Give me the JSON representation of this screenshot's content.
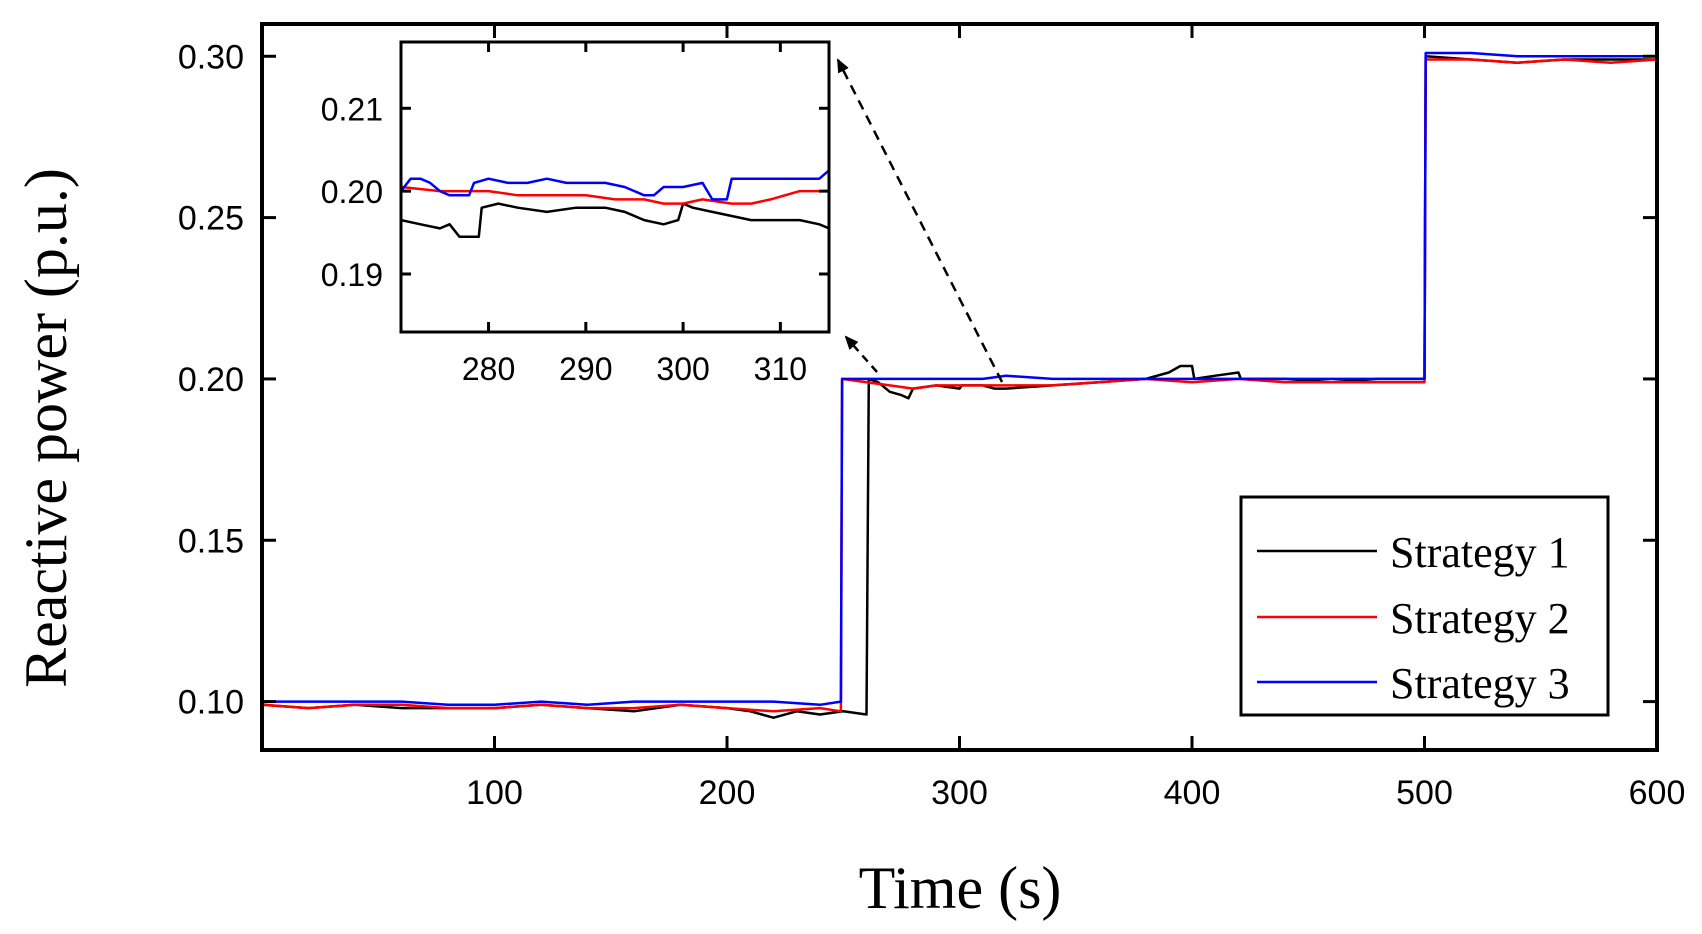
{
  "chart_data": [
    {
      "id": "main",
      "type": "line",
      "title": "",
      "xlabel": "Time (s)",
      "ylabel": "Reactive power (p.u.)",
      "xlim": [
        0,
        600
      ],
      "ylim": [
        0.085,
        0.31
      ],
      "xticks": [
        100,
        200,
        300,
        400,
        500,
        600
      ],
      "xtick_labels": [
        "100",
        "200",
        "300",
        "400",
        "500",
        "600"
      ],
      "yticks": [
        0.1,
        0.15,
        0.2,
        0.25,
        0.3
      ],
      "ytick_labels": [
        "0.10",
        "0.15",
        "0.20",
        "0.25",
        "0.30"
      ],
      "legend": {
        "position": "bottom-right",
        "entries": [
          "Strategy 1",
          "Strategy 2",
          "Strategy 3"
        ]
      },
      "series": [
        {
          "name": "Strategy 1",
          "color": "#000000",
          "points": [
            [
              0,
              0.099
            ],
            [
              20,
              0.098
            ],
            [
              40,
              0.099
            ],
            [
              60,
              0.098
            ],
            [
              80,
              0.098
            ],
            [
              100,
              0.098
            ],
            [
              120,
              0.099
            ],
            [
              140,
              0.098
            ],
            [
              160,
              0.097
            ],
            [
              180,
              0.099
            ],
            [
              200,
              0.098
            ],
            [
              210,
              0.097
            ],
            [
              220,
              0.095
            ],
            [
              230,
              0.097
            ],
            [
              240,
              0.096
            ],
            [
              250,
              0.097
            ],
            [
              260,
              0.096
            ],
            [
              261,
              0.2
            ],
            [
              265,
              0.199
            ],
            [
              270,
              0.196
            ],
            [
              275,
              0.195
            ],
            [
              278,
              0.194
            ],
            [
              280,
              0.197
            ],
            [
              290,
              0.198
            ],
            [
              300,
              0.197
            ],
            [
              301,
              0.198
            ],
            [
              310,
              0.198
            ],
            [
              315,
              0.197
            ],
            [
              320,
              0.197
            ],
            [
              340,
              0.198
            ],
            [
              360,
              0.199
            ],
            [
              380,
              0.2
            ],
            [
              390,
              0.202
            ],
            [
              395,
              0.204
            ],
            [
              400,
              0.204
            ],
            [
              401,
              0.2
            ],
            [
              410,
              0.201
            ],
            [
              420,
              0.202
            ],
            [
              421,
              0.2
            ],
            [
              440,
              0.2
            ],
            [
              460,
              0.199
            ],
            [
              480,
              0.2
            ],
            [
              500,
              0.2
            ],
            [
              500.5,
              0.3
            ],
            [
              520,
              0.299
            ],
            [
              540,
              0.298
            ],
            [
              560,
              0.299
            ],
            [
              580,
              0.299
            ],
            [
              600,
              0.299
            ]
          ]
        },
        {
          "name": "Strategy 2",
          "color": "#ff0000",
          "points": [
            [
              0,
              0.099
            ],
            [
              20,
              0.098
            ],
            [
              40,
              0.099
            ],
            [
              60,
              0.099
            ],
            [
              80,
              0.098
            ],
            [
              100,
              0.098
            ],
            [
              120,
              0.099
            ],
            [
              140,
              0.098
            ],
            [
              160,
              0.098
            ],
            [
              180,
              0.099
            ],
            [
              200,
              0.098
            ],
            [
              220,
              0.097
            ],
            [
              240,
              0.098
            ],
            [
              249,
              0.097
            ],
            [
              249.5,
              0.2
            ],
            [
              260,
              0.199
            ],
            [
              270,
              0.198
            ],
            [
              280,
              0.197
            ],
            [
              290,
              0.198
            ],
            [
              300,
              0.198
            ],
            [
              310,
              0.198
            ],
            [
              320,
              0.198
            ],
            [
              340,
              0.198
            ],
            [
              360,
              0.199
            ],
            [
              380,
              0.2
            ],
            [
              400,
              0.199
            ],
            [
              420,
              0.2
            ],
            [
              440,
              0.199
            ],
            [
              460,
              0.199
            ],
            [
              480,
              0.199
            ],
            [
              500,
              0.199
            ],
            [
              500.5,
              0.299
            ],
            [
              520,
              0.299
            ],
            [
              540,
              0.298
            ],
            [
              560,
              0.299
            ],
            [
              580,
              0.298
            ],
            [
              600,
              0.299
            ]
          ]
        },
        {
          "name": "Strategy 3",
          "color": "#0000ff",
          "points": [
            [
              0,
              0.1
            ],
            [
              20,
              0.1
            ],
            [
              40,
              0.1
            ],
            [
              60,
              0.1
            ],
            [
              80,
              0.099
            ],
            [
              100,
              0.099
            ],
            [
              120,
              0.1
            ],
            [
              140,
              0.099
            ],
            [
              160,
              0.1
            ],
            [
              180,
              0.1
            ],
            [
              200,
              0.1
            ],
            [
              220,
              0.1
            ],
            [
              240,
              0.099
            ],
            [
              249,
              0.1
            ],
            [
              249.5,
              0.2
            ],
            [
              260,
              0.2
            ],
            [
              270,
              0.2
            ],
            [
              280,
              0.2
            ],
            [
              290,
              0.2
            ],
            [
              300,
              0.2
            ],
            [
              310,
              0.2
            ],
            [
              320,
              0.201
            ],
            [
              340,
              0.2
            ],
            [
              360,
              0.2
            ],
            [
              380,
              0.2
            ],
            [
              400,
              0.2
            ],
            [
              420,
              0.2
            ],
            [
              440,
              0.2
            ],
            [
              460,
              0.2
            ],
            [
              480,
              0.2
            ],
            [
              500,
              0.2
            ],
            [
              500.5,
              0.301
            ],
            [
              520,
              0.301
            ],
            [
              540,
              0.3
            ],
            [
              560,
              0.3
            ],
            [
              580,
              0.3
            ],
            [
              600,
              0.3
            ]
          ]
        }
      ],
      "annotations": [
        {
          "type": "dashed-arrow",
          "from": [
            320,
            0.198
          ],
          "to": "inset-top-right"
        },
        {
          "type": "dashed-arrow",
          "from": [
            275,
            0.199
          ],
          "to": "inset-bottom-right"
        }
      ]
    },
    {
      "id": "inset",
      "type": "line",
      "title": "",
      "xlabel": "",
      "ylabel": "",
      "xlim": [
        271,
        315
      ],
      "ylim": [
        0.183,
        0.218
      ],
      "xticks": [
        280,
        290,
        300,
        310
      ],
      "xtick_labels": [
        "280",
        "290",
        "300",
        "310"
      ],
      "yticks": [
        0.19,
        0.2,
        0.21
      ],
      "ytick_labels": [
        "0.19",
        "0.20",
        "0.21"
      ],
      "series": [
        {
          "name": "Strategy 1",
          "color": "#000000",
          "points": [
            [
              271,
              0.1965
            ],
            [
              273,
              0.196
            ],
            [
              275,
              0.1955
            ],
            [
              276,
              0.196
            ],
            [
              277,
              0.1945
            ],
            [
              279,
              0.1945
            ],
            [
              279.3,
              0.198
            ],
            [
              281,
              0.1985
            ],
            [
              283,
              0.198
            ],
            [
              286,
              0.1975
            ],
            [
              289,
              0.198
            ],
            [
              292,
              0.198
            ],
            [
              294,
              0.1975
            ],
            [
              296,
              0.1965
            ],
            [
              298,
              0.196
            ],
            [
              299.5,
              0.1965
            ],
            [
              300,
              0.1985
            ],
            [
              301,
              0.198
            ],
            [
              303,
              0.1975
            ],
            [
              305,
              0.197
            ],
            [
              307,
              0.1965
            ],
            [
              310,
              0.1965
            ],
            [
              312,
              0.1965
            ],
            [
              314,
              0.196
            ],
            [
              315,
              0.1955
            ]
          ]
        },
        {
          "name": "Strategy 2",
          "color": "#ff0000",
          "points": [
            [
              271,
              0.2005
            ],
            [
              275,
              0.2
            ],
            [
              278,
              0.2
            ],
            [
              280,
              0.2
            ],
            [
              283,
              0.1995
            ],
            [
              287,
              0.1995
            ],
            [
              290,
              0.1995
            ],
            [
              293,
              0.199
            ],
            [
              296,
              0.199
            ],
            [
              298,
              0.1985
            ],
            [
              300,
              0.1985
            ],
            [
              302,
              0.199
            ],
            [
              305,
              0.1985
            ],
            [
              307,
              0.1985
            ],
            [
              309,
              0.199
            ],
            [
              312,
              0.2
            ],
            [
              315,
              0.2
            ]
          ]
        },
        {
          "name": "Strategy 3",
          "color": "#0000ff",
          "points": [
            [
              271,
              0.2
            ],
            [
              272,
              0.2015
            ],
            [
              273,
              0.2015
            ],
            [
              274,
              0.201
            ],
            [
              275,
              0.2
            ],
            [
              276,
              0.1995
            ],
            [
              278,
              0.1995
            ],
            [
              278.5,
              0.201
            ],
            [
              280,
              0.2015
            ],
            [
              282,
              0.201
            ],
            [
              284,
              0.201
            ],
            [
              286,
              0.2015
            ],
            [
              288,
              0.201
            ],
            [
              290,
              0.201
            ],
            [
              292,
              0.201
            ],
            [
              294,
              0.2005
            ],
            [
              296,
              0.1995
            ],
            [
              297,
              0.1995
            ],
            [
              298,
              0.2005
            ],
            [
              300,
              0.2005
            ],
            [
              302,
              0.201
            ],
            [
              303,
              0.199
            ],
            [
              304.5,
              0.199
            ],
            [
              305,
              0.2015
            ],
            [
              308,
              0.2015
            ],
            [
              311,
              0.2015
            ],
            [
              314,
              0.2015
            ],
            [
              315,
              0.2025
            ]
          ]
        }
      ]
    }
  ]
}
